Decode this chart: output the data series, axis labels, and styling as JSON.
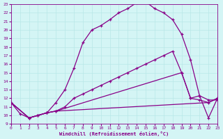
{
  "xlabel": "Windchill (Refroidissement éolien,°C)",
  "bg_color": "#d4f5f5",
  "line_color": "#880088",
  "grid_color": "#b8e8e8",
  "xlim": [
    0,
    23
  ],
  "ylim": [
    9,
    23
  ],
  "xticks": [
    0,
    1,
    2,
    3,
    4,
    5,
    6,
    7,
    8,
    9,
    10,
    11,
    12,
    13,
    14,
    15,
    16,
    17,
    18,
    19,
    20,
    21,
    22,
    23
  ],
  "yticks": [
    9,
    10,
    11,
    12,
    13,
    14,
    15,
    16,
    17,
    18,
    19,
    20,
    21,
    22,
    23
  ],
  "line1_x": [
    0,
    1,
    2,
    3,
    4,
    5,
    6,
    7,
    8,
    9,
    10,
    11,
    12,
    13,
    14,
    15,
    16,
    17,
    18,
    19,
    20,
    21,
    22,
    23
  ],
  "line1_y": [
    11.5,
    10.2,
    9.7,
    10.0,
    10.3,
    10.5,
    11.0,
    12.0,
    12.5,
    13.0,
    13.5,
    14.0,
    14.5,
    15.0,
    15.5,
    16.0,
    16.5,
    17.0,
    17.5,
    15.0,
    12.0,
    11.8,
    11.5,
    12.0
  ],
  "line2_x": [
    0,
    2,
    3,
    4,
    5,
    6,
    7,
    8,
    9,
    10,
    11,
    12,
    13,
    14,
    15,
    16,
    17,
    18,
    19,
    20,
    21,
    22,
    23
  ],
  "line2_y": [
    11.5,
    9.7,
    10.0,
    10.3,
    11.5,
    13.0,
    15.5,
    18.5,
    20.0,
    20.5,
    21.2,
    22.0,
    22.5,
    23.2,
    23.3,
    22.5,
    22.0,
    21.2,
    19.5,
    16.5,
    12.3,
    11.8,
    11.8
  ],
  "line3_x": [
    0,
    2,
    3,
    4,
    5,
    22,
    23
  ],
  "line3_y": [
    11.5,
    9.7,
    10.0,
    10.3,
    10.5,
    11.5,
    12.0
  ],
  "line4_x": [
    0,
    2,
    3,
    4,
    5,
    19,
    20,
    21,
    22,
    23
  ],
  "line4_y": [
    11.5,
    9.7,
    10.0,
    10.3,
    10.5,
    15.0,
    12.0,
    12.3,
    9.7,
    12.0
  ],
  "marker": "+"
}
